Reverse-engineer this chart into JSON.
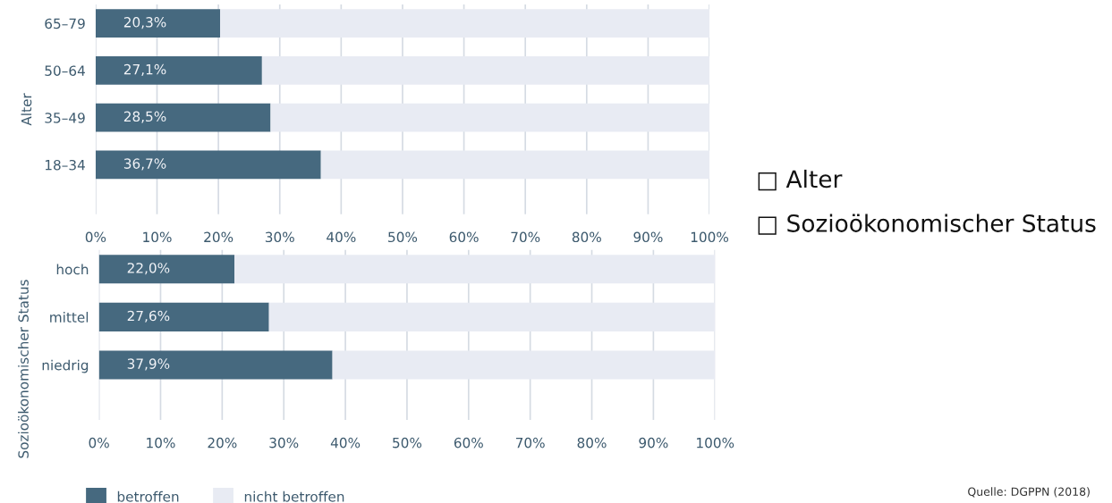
{
  "chart_data": [
    {
      "type": "bar",
      "orientation": "horizontal",
      "stacked": true,
      "ylabel": "Alter",
      "categories": [
        "65–79",
        "50–64",
        "35–49",
        "18–34"
      ],
      "series": [
        {
          "color": "#46697f",
          "values": [
            20.3,
            27.1,
            28.5,
            36.7
          ],
          "value_labels": [
            "20,3%",
            "27,1%",
            "28,5%",
            "36,7%"
          ]
        },
        {
          "color": "#e8ebf3",
          "values": [
            79.7,
            72.9,
            71.5,
            63.3
          ]
        }
      ],
      "xlim": [
        0,
        100
      ],
      "xticks": [
        {
          "value": 0,
          "label": "0%"
        },
        {
          "value": 10,
          "label": "10%"
        },
        {
          "value": 20,
          "label": "20%"
        },
        {
          "value": 30,
          "label": "30%"
        },
        {
          "value": 40,
          "label": "40%"
        },
        {
          "value": 50,
          "label": "50%"
        },
        {
          "value": 60,
          "label": "60%"
        },
        {
          "value": 70,
          "label": "70%"
        },
        {
          "value": 80,
          "label": "80%"
        },
        {
          "value": 90,
          "label": "90%"
        },
        {
          "value": 100,
          "label": "100%"
        }
      ],
      "grid": "x",
      "annotations": [
        "□ Alter",
        "□ Sozioökonomischer Status"
      ]
    },
    {
      "type": "bar",
      "orientation": "horizontal",
      "stacked": true,
      "ylabel": "Sozioökonomischer Status",
      "categories": [
        "hoch",
        "mittel",
        "niedrig"
      ],
      "series": [
        {
          "name": "betroffen",
          "color": "#46697f",
          "values": [
            22.0,
            27.6,
            37.9
          ],
          "value_labels": [
            "22,0%",
            "27,6%",
            "37,9%"
          ]
        },
        {
          "name": "nicht betroffen",
          "color": "#e8ebf3",
          "values": [
            78.0,
            72.4,
            62.1
          ]
        }
      ],
      "xlim": [
        0,
        100
      ],
      "xticks": [
        {
          "value": 0,
          "label": "0%"
        },
        {
          "value": 10,
          "label": "10%"
        },
        {
          "value": 20,
          "label": "20%"
        },
        {
          "value": 30,
          "label": "30%"
        },
        {
          "value": 40,
          "label": "40%"
        },
        {
          "value": 50,
          "label": "50%"
        },
        {
          "value": 60,
          "label": "60%"
        },
        {
          "value": 70,
          "label": "70%"
        },
        {
          "value": 80,
          "label": "80%"
        },
        {
          "value": 90,
          "label": "90%"
        },
        {
          "value": 100,
          "label": "100%"
        }
      ],
      "grid": "x",
      "legend": "bottom",
      "annotations": [
        "Quelle: DGPPN (2018)"
      ]
    }
  ]
}
